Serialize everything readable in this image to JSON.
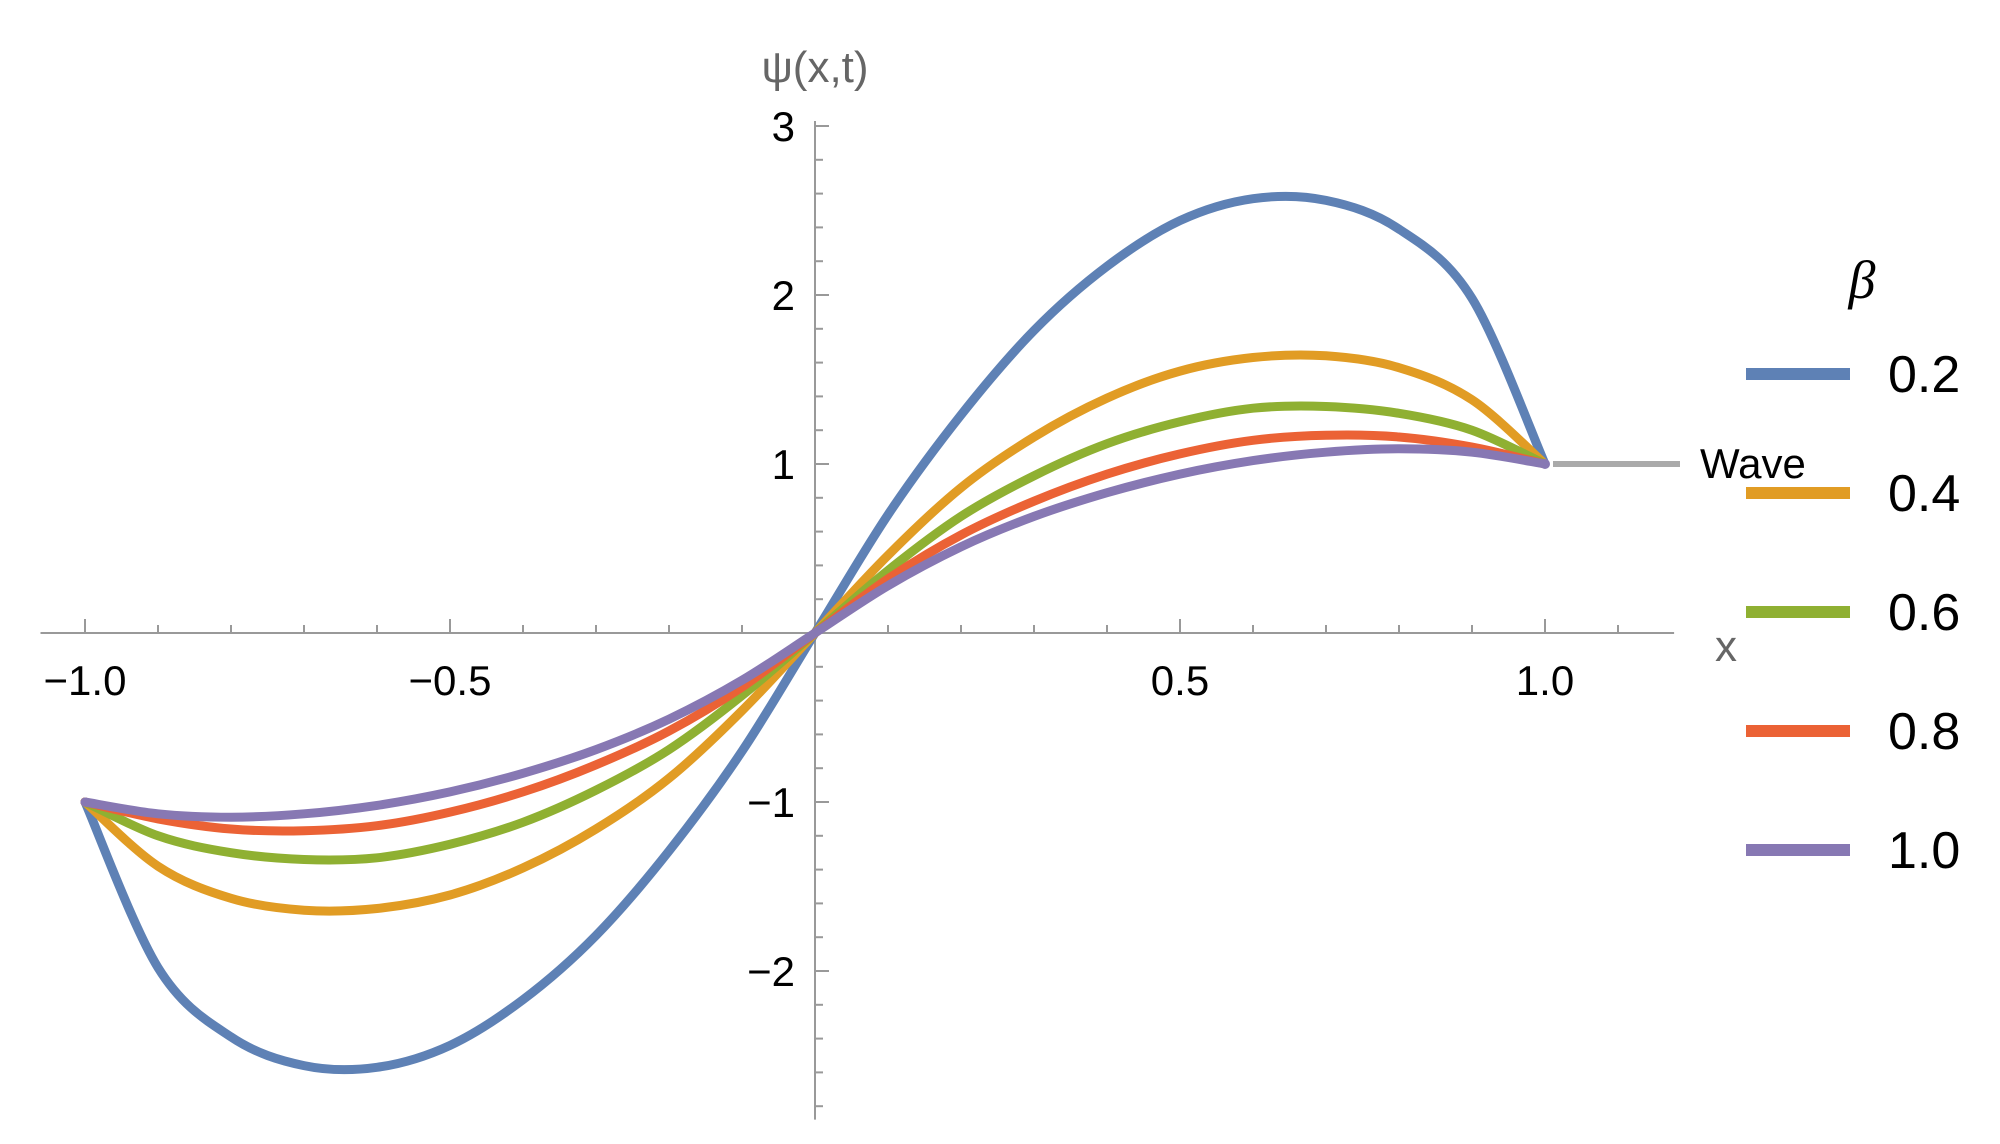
{
  "chart_data": {
    "type": "line",
    "title": "",
    "xlabel": "x",
    "ylabel": "ψ(x,t)",
    "xlim": [
      -1.05,
      1.17
    ],
    "ylim": [
      -2.85,
      3.0
    ],
    "x_ticks": [
      -1.0,
      -0.5,
      0.5,
      1.0
    ],
    "x_tick_labels": [
      "−1.0",
      "−0.5",
      "0.5",
      "1.0"
    ],
    "y_ticks": [
      -2,
      -1,
      1,
      2,
      3
    ],
    "y_tick_labels": [
      "−2",
      "−1",
      "1",
      "2",
      "3"
    ],
    "grid": false,
    "legend": {
      "title": "β",
      "position": "right"
    },
    "annotation": {
      "text": "Wave",
      "x": 1.0,
      "y": 1.0,
      "color": "#aaaaaa"
    },
    "series": [
      {
        "name": "0.2",
        "color": "#5e81b5",
        "x": [
          -1.0,
          -0.9,
          -0.8,
          -0.7,
          -0.6,
          -0.5,
          -0.4,
          -0.3,
          -0.2,
          -0.1,
          0.0,
          0.1,
          0.2,
          0.3,
          0.4,
          0.5,
          0.6,
          0.7,
          0.8,
          0.9,
          1.0
        ],
        "y": [
          -1.0,
          -1.98,
          -2.39,
          -2.56,
          -2.57,
          -2.44,
          -2.17,
          -1.79,
          -1.29,
          -0.7,
          0.0,
          0.7,
          1.29,
          1.79,
          2.17,
          2.44,
          2.57,
          2.56,
          2.39,
          1.98,
          1.0
        ]
      },
      {
        "name": "0.4",
        "color": "#e19c24",
        "x": [
          -1.0,
          -0.9,
          -0.8,
          -0.7,
          -0.6,
          -0.5,
          -0.4,
          -0.3,
          -0.2,
          -0.1,
          0.0,
          0.1,
          0.2,
          0.3,
          0.4,
          0.5,
          0.6,
          0.7,
          0.8,
          0.9,
          1.0
        ],
        "y": [
          -1.0,
          -1.38,
          -1.57,
          -1.64,
          -1.63,
          -1.55,
          -1.39,
          -1.16,
          -0.86,
          -0.46,
          0.0,
          0.46,
          0.86,
          1.16,
          1.39,
          1.55,
          1.63,
          1.64,
          1.57,
          1.38,
          1.0
        ]
      },
      {
        "name": "0.6",
        "color": "#8fb032",
        "x": [
          -1.0,
          -0.9,
          -0.8,
          -0.7,
          -0.6,
          -0.5,
          -0.4,
          -0.3,
          -0.2,
          -0.1,
          0.0,
          0.1,
          0.2,
          0.3,
          0.4,
          0.5,
          0.6,
          0.7,
          0.8,
          0.9,
          1.0
        ],
        "y": [
          -1.0,
          -1.2,
          -1.3,
          -1.34,
          -1.33,
          -1.25,
          -1.12,
          -0.93,
          -0.69,
          -0.37,
          0.0,
          0.37,
          0.69,
          0.93,
          1.12,
          1.25,
          1.33,
          1.34,
          1.3,
          1.2,
          1.0
        ]
      },
      {
        "name": "0.8",
        "color": "#eb6235",
        "x": [
          -1.0,
          -0.9,
          -0.8,
          -0.7,
          -0.6,
          -0.5,
          -0.4,
          -0.3,
          -0.2,
          -0.1,
          0.0,
          0.1,
          0.2,
          0.3,
          0.4,
          0.5,
          0.6,
          0.7,
          0.8,
          0.9,
          1.0
        ],
        "y": [
          -1.0,
          -1.1,
          -1.16,
          -1.17,
          -1.14,
          -1.06,
          -0.94,
          -0.78,
          -0.58,
          -0.32,
          0.0,
          0.32,
          0.58,
          0.78,
          0.94,
          1.06,
          1.14,
          1.17,
          1.16,
          1.1,
          1.0
        ]
      },
      {
        "name": "1.0",
        "color": "#8778b3",
        "x": [
          -1.0,
          -0.9,
          -0.8,
          -0.7,
          -0.6,
          -0.5,
          -0.4,
          -0.3,
          -0.2,
          -0.1,
          0.0,
          0.1,
          0.2,
          0.3,
          0.4,
          0.5,
          0.6,
          0.7,
          0.8,
          0.9,
          1.0
        ],
        "y": [
          -1.0,
          -1.07,
          -1.09,
          -1.07,
          -1.02,
          -0.94,
          -0.83,
          -0.69,
          -0.51,
          -0.28,
          0.0,
          0.28,
          0.51,
          0.69,
          0.83,
          0.94,
          1.02,
          1.07,
          1.09,
          1.07,
          1.0
        ]
      }
    ]
  }
}
